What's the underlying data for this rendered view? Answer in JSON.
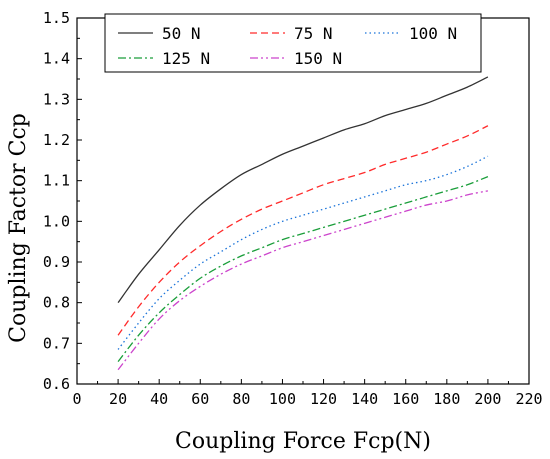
{
  "chart_data": {
    "type": "line",
    "title": "",
    "xlabel": "Coupling Force Fcp(N)",
    "ylabel": "Coupling Factor Ccp",
    "xlim": [
      0,
      220
    ],
    "ylim": [
      0.6,
      1.5
    ],
    "xticks": [
      0,
      20,
      40,
      60,
      80,
      100,
      120,
      140,
      160,
      180,
      200,
      220
    ],
    "yticks": [
      0.6,
      0.7,
      0.8,
      0.9,
      1.0,
      1.1,
      1.2,
      1.3,
      1.4,
      1.5
    ],
    "xtick_labels": [
      "0",
      "20",
      "40",
      "60",
      "80",
      "100",
      "120",
      "140",
      "160",
      "180",
      "200",
      "220"
    ],
    "ytick_labels": [
      "0.6",
      "0.7",
      "0.8",
      "0.9",
      "1.0",
      "1.1",
      "1.2",
      "1.3",
      "1.4",
      "1.5"
    ],
    "grid": false,
    "legend_position": "top",
    "x": [
      20,
      30,
      40,
      50,
      60,
      70,
      80,
      90,
      100,
      110,
      120,
      130,
      140,
      150,
      160,
      170,
      180,
      190,
      200
    ],
    "series": [
      {
        "name": "50 N",
        "color": "#333333",
        "dash": "solid",
        "values": [
          0.8,
          0.87,
          0.93,
          0.99,
          1.04,
          1.08,
          1.115,
          1.14,
          1.165,
          1.185,
          1.205,
          1.225,
          1.24,
          1.26,
          1.275,
          1.29,
          1.31,
          1.33,
          1.355
        ]
      },
      {
        "name": "75 N",
        "color": "#ff2a2a",
        "dash": "dashed",
        "values": [
          0.72,
          0.79,
          0.85,
          0.9,
          0.94,
          0.975,
          1.005,
          1.03,
          1.05,
          1.07,
          1.09,
          1.105,
          1.12,
          1.14,
          1.155,
          1.17,
          1.19,
          1.21,
          1.235
        ]
      },
      {
        "name": "100 N",
        "color": "#1a73d9",
        "dash": "dotted",
        "values": [
          0.685,
          0.75,
          0.81,
          0.855,
          0.895,
          0.925,
          0.955,
          0.98,
          1.0,
          1.015,
          1.03,
          1.045,
          1.06,
          1.075,
          1.09,
          1.1,
          1.115,
          1.135,
          1.16
        ]
      },
      {
        "name": "125 N",
        "color": "#1a9e3a",
        "dash": "dashdot",
        "values": [
          0.655,
          0.72,
          0.775,
          0.82,
          0.86,
          0.89,
          0.915,
          0.935,
          0.955,
          0.97,
          0.985,
          1.0,
          1.015,
          1.03,
          1.045,
          1.06,
          1.075,
          1.09,
          1.11
        ]
      },
      {
        "name": "150 N",
        "color": "#cc44cc",
        "dash": "dashdotdot",
        "values": [
          0.635,
          0.7,
          0.76,
          0.805,
          0.84,
          0.87,
          0.895,
          0.915,
          0.935,
          0.95,
          0.965,
          0.98,
          0.995,
          1.01,
          1.025,
          1.04,
          1.05,
          1.065,
          1.075
        ]
      }
    ]
  }
}
